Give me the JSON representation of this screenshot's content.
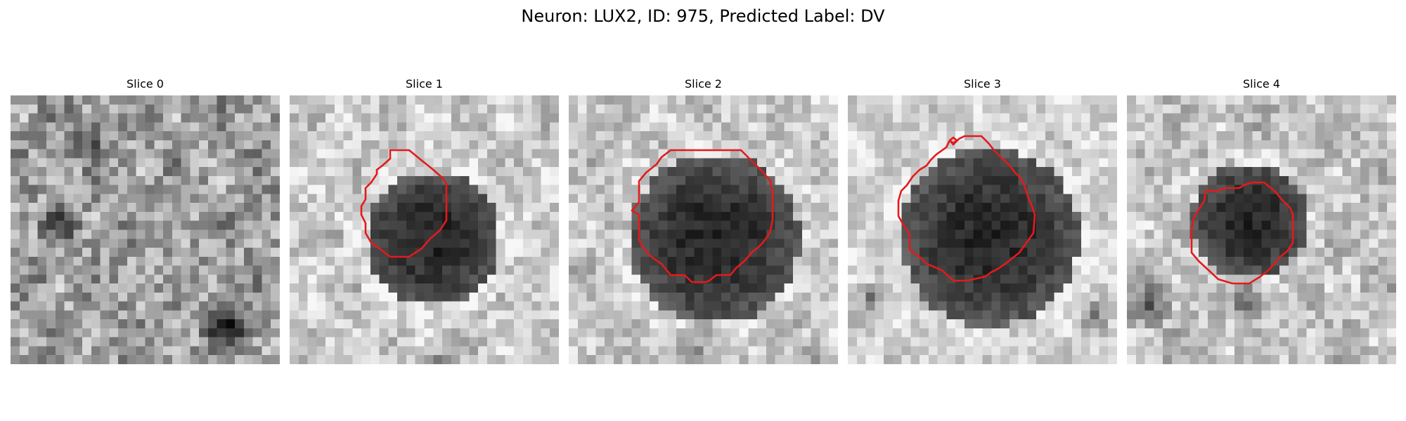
{
  "figure": {
    "suptitle": "Neuron: LUX2, ID: 975, Predicted Label: DV"
  },
  "panels": [
    {
      "title": "Slice 0"
    },
    {
      "title": "Slice 1"
    },
    {
      "title": "Slice 2"
    },
    {
      "title": "Slice 3"
    },
    {
      "title": "Slice 4"
    }
  ],
  "colors": {
    "contour": "#e41a1c",
    "background": "#ffffff"
  }
}
